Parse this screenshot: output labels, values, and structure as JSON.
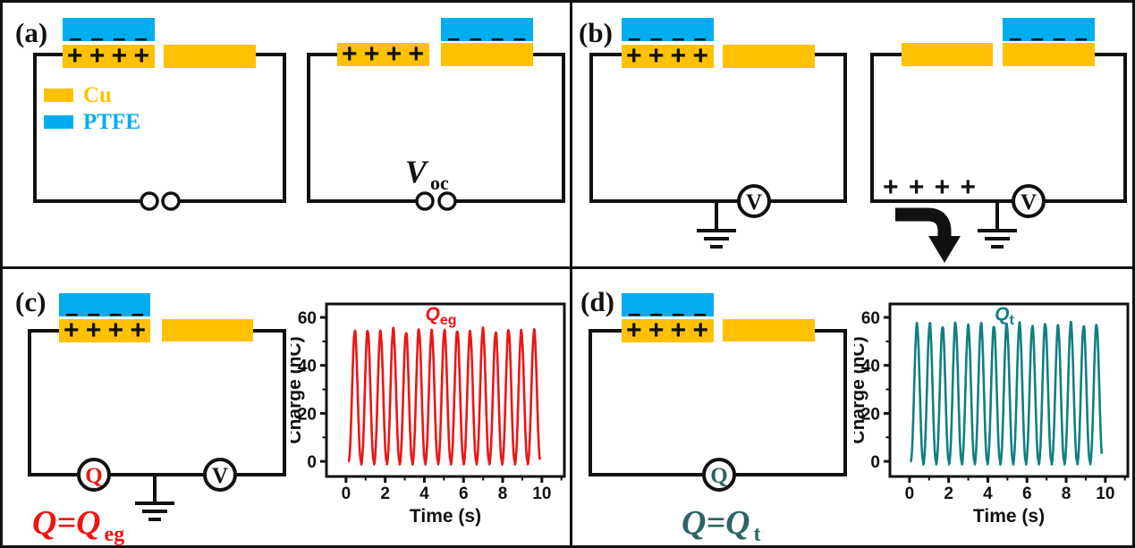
{
  "colors": {
    "cu": "#FDC101",
    "ptfe": "#00AEEF",
    "ink": "#111111",
    "red": "#EE1414",
    "teal": "#107F81",
    "teal_dark": "#2F6365"
  },
  "charges": {
    "positive": "+ + + +",
    "negative": "– – – –"
  },
  "panels": {
    "a": {
      "label": "(a)",
      "legend": [
        {
          "name": "Cu"
        },
        {
          "name": "PTFE"
        }
      ],
      "voc_main": "V",
      "voc_sub": "oc"
    },
    "b": {
      "label": "(b)",
      "voltmeter": "V"
    },
    "c": {
      "label": "(c)",
      "charge_meter": "Q",
      "voltmeter": "V",
      "eq_main": "Q=Q",
      "eq_sub": "eg"
    },
    "d": {
      "label": "(d)",
      "charge_meter": "Q",
      "eq_main": "Q=Q",
      "eq_sub": "t"
    }
  },
  "chart_data": [
    {
      "type": "line",
      "panel": "c",
      "title_main": "Q",
      "title_sub": "eg",
      "xlabel": "Time (s)",
      "ylabel": "Charge (nC)",
      "x_ticks": [
        0,
        2,
        4,
        6,
        8,
        10
      ],
      "y_ticks": [
        0,
        20,
        40,
        60
      ],
      "xlim": [
        -1.0,
        11.15
      ],
      "ylim": [
        -6.3,
        65.6
      ],
      "grid": false,
      "legend_position": "top-center-inside",
      "color_key": "red",
      "waveform": {
        "shape": "pulse_train",
        "cycles": 15,
        "period_s": 0.654,
        "first_peak_s": 0.45,
        "peak_nC": 54.5,
        "base_nC": 0,
        "t_start_s": 0.1,
        "t_end_s": 9.9
      }
    },
    {
      "type": "line",
      "panel": "d",
      "title_main": "Q",
      "title_sub": "t",
      "xlabel": "Time (s)",
      "ylabel": "Charge (nC)",
      "x_ticks": [
        0,
        2,
        4,
        6,
        8,
        10
      ],
      "y_ticks": [
        0,
        20,
        40,
        60
      ],
      "xlim": [
        -1.0,
        11.15
      ],
      "ylim": [
        -6.3,
        65.6
      ],
      "grid": false,
      "legend_position": "top-center-inside",
      "color_key": "teal",
      "waveform": {
        "shape": "pulse_train",
        "cycles": 15,
        "period_s": 0.655,
        "first_peak_s": 0.38,
        "peak_nC": 57,
        "base_nC": 0,
        "t_start_s": 0.03,
        "t_end_s": 9.82
      }
    }
  ]
}
